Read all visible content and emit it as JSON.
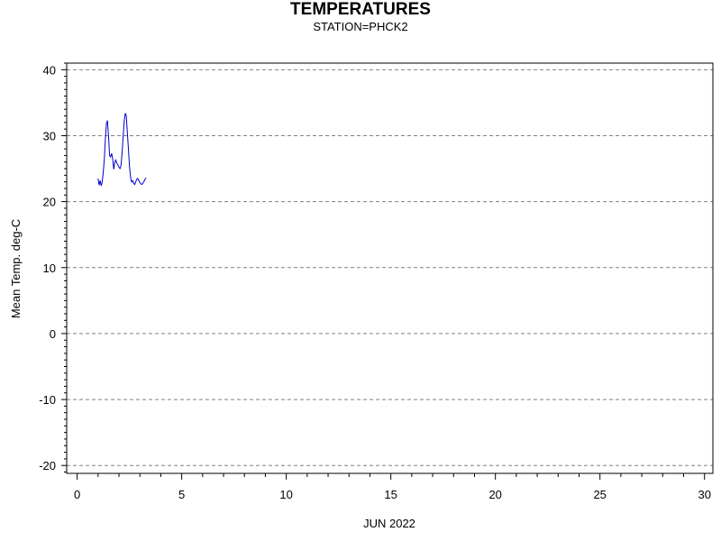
{
  "chart_data": {
    "type": "line",
    "title": "TEMPERATURES",
    "subtitle": "STATION=PHCK2",
    "xlabel": "JUN 2022",
    "ylabel": "Mean Temp. deg-C",
    "xlim": [
      -0.5,
      30.4
    ],
    "ylim": [
      -21.2,
      41
    ],
    "x_ticks": [
      0,
      5,
      10,
      15,
      20,
      25,
      30
    ],
    "y_ticks": [
      -20,
      -10,
      0,
      10,
      20,
      30,
      40
    ],
    "grid": "horizontal-dashed",
    "line_color": "#0000cc",
    "series": [
      {
        "x": [
          1.0,
          1.05,
          1.1,
          1.15,
          1.2,
          1.25,
          1.3,
          1.35,
          1.4,
          1.45,
          1.5,
          1.55,
          1.6,
          1.65,
          1.7,
          1.75,
          1.8,
          1.85,
          1.9,
          1.95,
          2.0,
          2.05,
          2.1,
          2.15,
          2.2,
          2.25,
          2.3,
          2.35,
          2.4,
          2.45,
          2.5,
          2.55,
          2.6,
          2.65,
          2.7,
          2.75,
          2.8,
          2.85,
          2.9,
          2.95,
          3.0,
          3.05,
          3.1,
          3.15,
          3.2,
          3.25,
          3.3
        ],
        "values": [
          23.5,
          22.5,
          23.2,
          22.4,
          23.0,
          24.5,
          26.5,
          29.5,
          31.8,
          32.3,
          30.0,
          27.0,
          26.8,
          27.3,
          26.5,
          24.9,
          26.0,
          26.3,
          25.8,
          25.6,
          25.2,
          25.0,
          25.5,
          27.5,
          30.0,
          32.2,
          33.4,
          33.0,
          30.5,
          28.0,
          25.5,
          23.8,
          23.0,
          23.2,
          22.8,
          22.6,
          23.0,
          23.4,
          23.5,
          23.2,
          22.9,
          22.7,
          22.6,
          22.8,
          23.1,
          23.4,
          23.6
        ]
      }
    ]
  }
}
